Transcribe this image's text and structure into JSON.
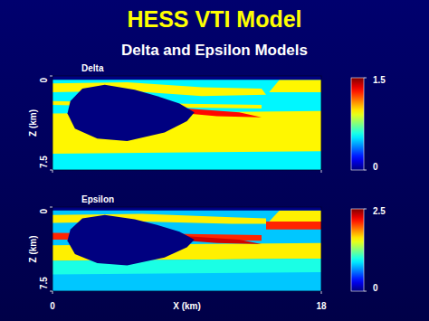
{
  "title": "HESS VTI Model",
  "subtitle": "Delta and Epsilon Models",
  "chart_data": [
    {
      "type": "heatmap",
      "title": "Delta",
      "ylabel": "Z (km)",
      "xlim": [
        0,
        18
      ],
      "ylim": [
        0,
        7.5
      ],
      "xticks": [
        0,
        18
      ],
      "yticks": [
        0,
        7.5
      ],
      "tick_labels": "y",
      "colorbar": {
        "range": [
          0,
          1.5
        ],
        "ticks": [
          0,
          1.5
        ]
      },
      "regions": [
        {
          "value": 0.55,
          "polygon": [
            [
              0,
              0
            ],
            [
              18,
              0
            ],
            [
              18,
              7.5
            ],
            [
              0,
              7.5
            ]
          ]
        },
        {
          "value": 0.95,
          "polygon": [
            [
              0,
              3.0
            ],
            [
              9,
              2.9
            ],
            [
              18,
              2.8
            ],
            [
              18,
              6.0
            ],
            [
              9,
              6.1
            ],
            [
              0,
              6.2
            ]
          ]
        },
        {
          "value": 0.95,
          "polygon": [
            [
              0,
              0.6
            ],
            [
              5,
              0.5
            ],
            [
              10,
              0.9
            ],
            [
              14,
              1.0
            ],
            [
              14.3,
              1.5
            ],
            [
              10,
              1.6
            ],
            [
              5,
              1.2
            ],
            [
              0,
              1.3
            ]
          ]
        },
        {
          "value": 0.95,
          "polygon": [
            [
              0,
              2.0
            ],
            [
              8,
              2.2
            ],
            [
              14,
              2.3
            ],
            [
              14,
              2.6
            ],
            [
              8,
              2.5
            ],
            [
              0,
              2.3
            ]
          ]
        },
        {
          "value": 0.95,
          "polygon": [
            [
              14.5,
              1.3
            ],
            [
              15.2,
              0.3
            ],
            [
              18,
              0.3
            ],
            [
              18,
              1.3
            ]
          ]
        },
        {
          "value": 0,
          "polygon": [
            [
              0,
              0
            ],
            [
              18,
              0
            ],
            [
              18,
              0.3
            ],
            [
              0,
              0.3
            ]
          ]
        },
        {
          "value": 1.3,
          "polygon": [
            [
              9,
              2.6
            ],
            [
              12.5,
              2.9
            ],
            [
              14,
              3.3
            ],
            [
              11,
              3.2
            ],
            [
              9,
              3.0
            ]
          ]
        },
        {
          "value": 0,
          "polygon": [
            [
              1.2,
              2.0
            ],
            [
              2,
              1.0
            ],
            [
              3.5,
              0.7
            ],
            [
              5.5,
              1.1
            ],
            [
              7,
              1.6
            ],
            [
              8.5,
              2.2
            ],
            [
              9.5,
              2.9
            ],
            [
              9,
              3.6
            ],
            [
              7.5,
              4.5
            ],
            [
              5,
              5.2
            ],
            [
              3,
              5.0
            ],
            [
              1.5,
              4.2
            ],
            [
              1,
              3.0
            ]
          ]
        }
      ]
    },
    {
      "type": "heatmap",
      "title": "Epsilon",
      "xlabel": "X (km)",
      "ylabel": "Z (km)",
      "xlim": [
        0,
        18
      ],
      "ylim": [
        0,
        7.5
      ],
      "xticks": [
        0,
        18
      ],
      "yticks": [
        0,
        7.5
      ],
      "colorbar": {
        "range": [
          0,
          2.5
        ],
        "ticks": [
          0,
          2.5
        ]
      },
      "regions": [
        {
          "value": 0.8,
          "polygon": [
            [
              0,
              0
            ],
            [
              18,
              0
            ],
            [
              18,
              7.5
            ],
            [
              0,
              7.5
            ]
          ]
        },
        {
          "value": 1.6,
          "polygon": [
            [
              0,
              0.7
            ],
            [
              6,
              0.6
            ],
            [
              12,
              0.9
            ],
            [
              14.3,
              1.0
            ],
            [
              14.3,
              1.5
            ],
            [
              12,
              1.5
            ],
            [
              6,
              1.3
            ],
            [
              0,
              1.4
            ]
          ]
        },
        {
          "value": 2.1,
          "polygon": [
            [
              0,
              2.3
            ],
            [
              9,
              2.4
            ],
            [
              14,
              2.5
            ],
            [
              14,
              3.0
            ],
            [
              9,
              2.9
            ],
            [
              0,
              2.9
            ]
          ]
        },
        {
          "value": 1.6,
          "polygon": [
            [
              0,
              3.4
            ],
            [
              9,
              3.3
            ],
            [
              18,
              3.2
            ],
            [
              18,
              4.6
            ],
            [
              9,
              4.7
            ],
            [
              0,
              4.8
            ]
          ]
        },
        {
          "value": 1.0,
          "polygon": [
            [
              0,
              4.8
            ],
            [
              9,
              4.7
            ],
            [
              18,
              4.6
            ],
            [
              18,
              5.8
            ],
            [
              9,
              5.9
            ],
            [
              0,
              6.0
            ]
          ]
        },
        {
          "value": 1.6,
          "polygon": [
            [
              14.5,
              1.3
            ],
            [
              15.2,
              0.3
            ],
            [
              18,
              0.3
            ],
            [
              18,
              1.3
            ]
          ]
        },
        {
          "value": 2.1,
          "polygon": [
            [
              14.3,
              1.3
            ],
            [
              18,
              1.3
            ],
            [
              18,
              2.0
            ],
            [
              14.3,
              2.0
            ]
          ]
        },
        {
          "value": 0,
          "polygon": [
            [
              0,
              0
            ],
            [
              18,
              0
            ],
            [
              18,
              0.3
            ],
            [
              0,
              0.3
            ]
          ]
        },
        {
          "value": 2.3,
          "polygon": [
            [
              9,
              2.6
            ],
            [
              12.5,
              2.9
            ],
            [
              14,
              3.3
            ],
            [
              11,
              3.2
            ],
            [
              9,
              3.0
            ]
          ]
        },
        {
          "value": 0,
          "polygon": [
            [
              1.2,
              2.0
            ],
            [
              2,
              1.0
            ],
            [
              3.5,
              0.7
            ],
            [
              5.5,
              1.1
            ],
            [
              7,
              1.6
            ],
            [
              8.5,
              2.2
            ],
            [
              9.5,
              2.9
            ],
            [
              9,
              3.6
            ],
            [
              7.5,
              4.5
            ],
            [
              5,
              5.2
            ],
            [
              3,
              5.0
            ],
            [
              1.5,
              4.2
            ],
            [
              1,
              3.0
            ]
          ]
        }
      ]
    }
  ]
}
